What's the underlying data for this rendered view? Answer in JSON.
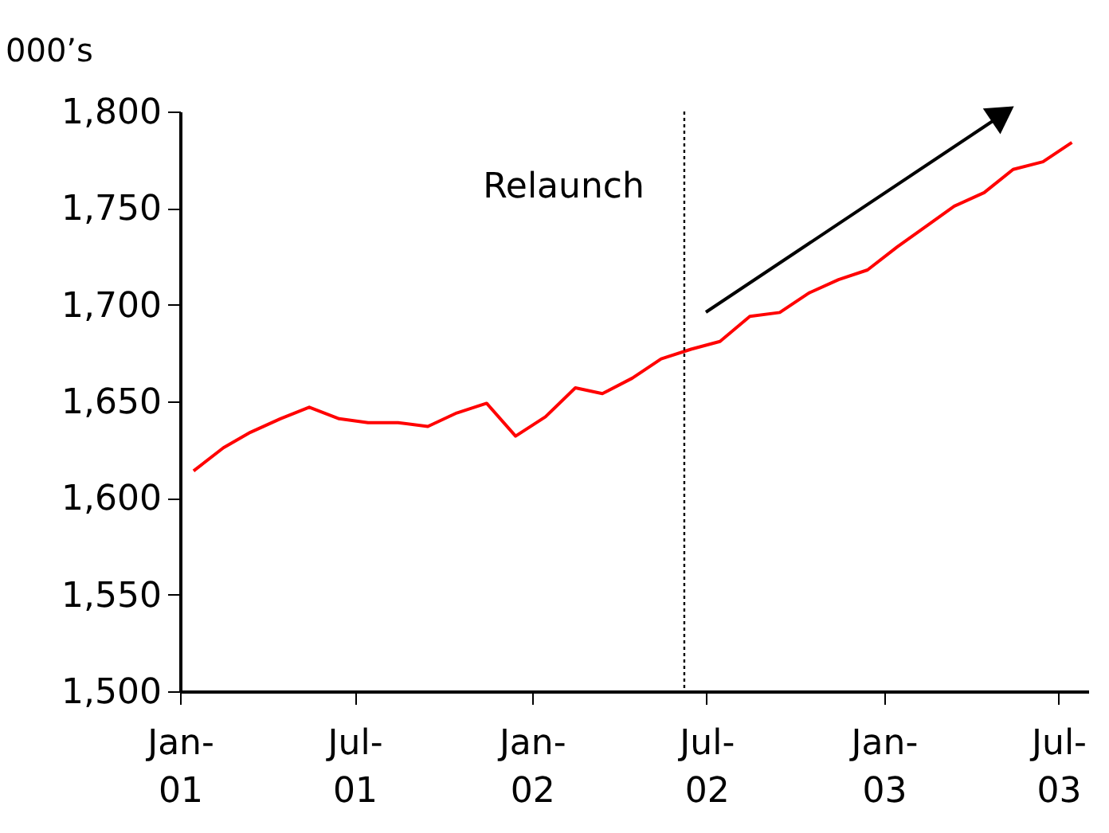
{
  "chart_data": {
    "type": "line",
    "ylabel": "000’s",
    "x": [
      "2001-01-15",
      "2001-02-15",
      "2001-03-15",
      "2001-04-15",
      "2001-05-15",
      "2001-06-15",
      "2001-07-15",
      "2001-08-15",
      "2001-09-15",
      "2001-10-15",
      "2001-11-15",
      "2001-12-15",
      "2002-01-15",
      "2002-02-15",
      "2002-03-15",
      "2002-04-15",
      "2002-05-15",
      "2002-06-15",
      "2002-07-15",
      "2002-08-15",
      "2002-09-15",
      "2002-10-15",
      "2002-11-15",
      "2002-12-15",
      "2003-01-15",
      "2003-02-15",
      "2003-03-15",
      "2003-04-15",
      "2003-05-15",
      "2003-06-15",
      "2003-07-15"
    ],
    "series": [
      {
        "color": "#ff0000",
        "values": [
          1614,
          1626,
          1634,
          1641,
          1647,
          1641,
          1639,
          1639,
          1637,
          1644,
          1649,
          1632,
          1642,
          1657,
          1654,
          1662,
          1672,
          1677,
          1681,
          1694,
          1696,
          1706,
          1713,
          1718,
          1730,
          1741,
          1751,
          1758,
          1770,
          1774,
          1784
        ]
      }
    ],
    "xlim": [
      "2001-01-01",
      "2003-08-01"
    ],
    "xticks": [
      {
        "value": "2001-01-01",
        "label": "Jan-\n01"
      },
      {
        "value": "2001-07-01",
        "label": "Jul-\n01"
      },
      {
        "value": "2002-01-01",
        "label": "Jan-\n02"
      },
      {
        "value": "2002-07-01",
        "label": "Jul-\n02"
      },
      {
        "value": "2003-01-01",
        "label": "Jan-\n03"
      },
      {
        "value": "2003-07-01",
        "label": "Jul-\n03"
      }
    ],
    "ylim": [
      1500,
      1800
    ],
    "yticks": [
      {
        "value": 1500,
        "label": "1,500"
      },
      {
        "value": 1550,
        "label": "1,550"
      },
      {
        "value": 1600,
        "label": "1,600"
      },
      {
        "value": 1650,
        "label": "1,650"
      },
      {
        "value": 1700,
        "label": "1,700"
      },
      {
        "value": 1750,
        "label": "1,750"
      },
      {
        "value": 1800,
        "label": "1,800"
      }
    ],
    "ref_lines": [
      {
        "axis": "x",
        "value": "2002-06-08",
        "label": "Relaunch",
        "color": "#000000",
        "line_style": "dotted"
      }
    ],
    "grid": false,
    "marker": "none",
    "line_style": "solid"
  }
}
